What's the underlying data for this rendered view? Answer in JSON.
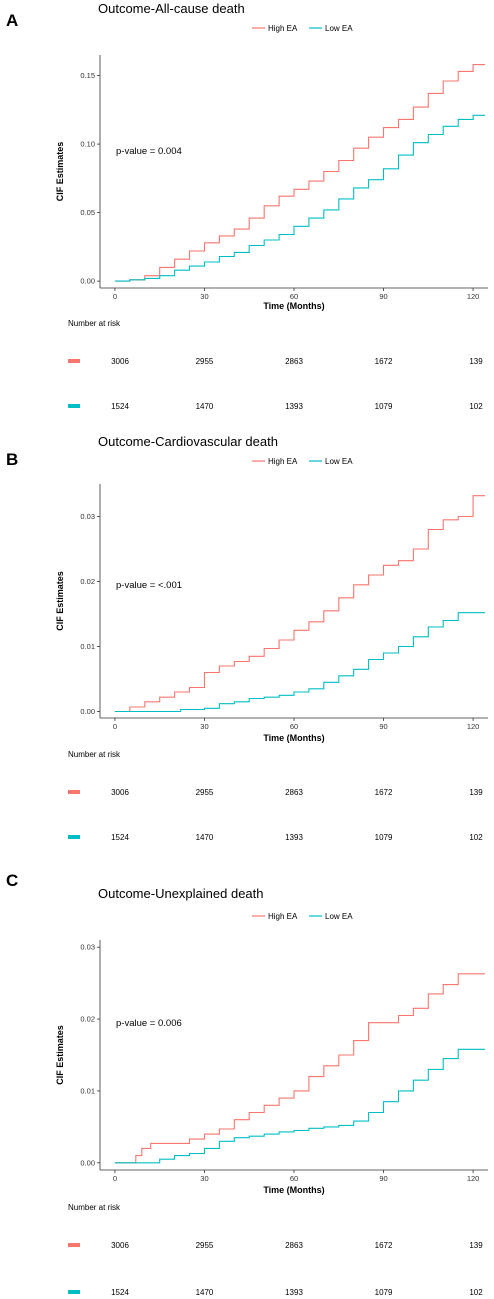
{
  "figure": {
    "colors": {
      "high": "#F8766D",
      "low": "#00BFC4",
      "axis": "#333333"
    },
    "risk_label": "Number at risk"
  },
  "chart_data": [
    {
      "type": "line",
      "panel": "A",
      "title": "Outcome-All-cause death",
      "xlabel": "Time (Months)",
      "ylabel": "CIF Estimates",
      "xlim": [
        -5,
        125
      ],
      "ylim": [
        -0.005,
        0.165
      ],
      "x_ticks": [
        0,
        30,
        60,
        90,
        120
      ],
      "y_ticks": [
        0.0,
        0.05,
        0.1,
        0.15
      ],
      "y_tick_labels": [
        "0.00",
        "0.05",
        "0.10",
        "0.15"
      ],
      "legend": [
        "High EA",
        "Low EA"
      ],
      "legend_position": "top",
      "p_value": "p-value = 0.004",
      "series": [
        {
          "name": "High EA",
          "x": [
            0,
            5,
            10,
            15,
            20,
            25,
            30,
            35,
            40,
            45,
            50,
            55,
            60,
            65,
            70,
            75,
            80,
            85,
            90,
            95,
            100,
            105,
            110,
            115,
            120,
            124
          ],
          "y": [
            0,
            0.001,
            0.004,
            0.01,
            0.016,
            0.022,
            0.028,
            0.033,
            0.038,
            0.046,
            0.055,
            0.062,
            0.067,
            0.073,
            0.08,
            0.088,
            0.097,
            0.105,
            0.112,
            0.118,
            0.127,
            0.137,
            0.146,
            0.153,
            0.158,
            0.158
          ]
        },
        {
          "name": "Low EA",
          "x": [
            0,
            5,
            10,
            15,
            20,
            25,
            30,
            35,
            40,
            45,
            50,
            55,
            60,
            65,
            70,
            75,
            80,
            85,
            90,
            95,
            100,
            105,
            110,
            115,
            120,
            124
          ],
          "y": [
            0,
            0.001,
            0.002,
            0.004,
            0.008,
            0.011,
            0.014,
            0.018,
            0.021,
            0.026,
            0.03,
            0.034,
            0.04,
            0.046,
            0.052,
            0.06,
            0.068,
            0.074,
            0.082,
            0.092,
            0.101,
            0.107,
            0.113,
            0.118,
            0.121,
            0.121
          ]
        }
      ],
      "risk_table": {
        "times": [
          0,
          30,
          60,
          90,
          120
        ],
        "rows": [
          {
            "name": "High EA",
            "values": [
              "3006",
              "2955",
              "2863",
              "1672",
              "139"
            ]
          },
          {
            "name": "Low EA",
            "values": [
              "1524",
              "1470",
              "1393",
              "1079",
              "102"
            ]
          }
        ]
      }
    },
    {
      "type": "line",
      "panel": "B",
      "title": "Outcome-Cardiovascular death",
      "xlabel": "Time (Months)",
      "ylabel": "CIF Estimates",
      "xlim": [
        -5,
        125
      ],
      "ylim": [
        -0.001,
        0.035
      ],
      "x_ticks": [
        0,
        30,
        60,
        90,
        120
      ],
      "y_ticks": [
        0.0,
        0.01,
        0.02,
        0.03
      ],
      "y_tick_labels": [
        "0.00",
        "0.01",
        "0.02",
        "0.03"
      ],
      "legend": [
        "High EA",
        "Low EA"
      ],
      "legend_position": "top",
      "p_value": "p-value = <.001",
      "series": [
        {
          "name": "High EA",
          "x": [
            0,
            5,
            10,
            15,
            20,
            25,
            30,
            35,
            40,
            45,
            50,
            55,
            60,
            65,
            70,
            75,
            80,
            85,
            90,
            95,
            100,
            105,
            110,
            115,
            120,
            124
          ],
          "y": [
            0,
            0.0007,
            0.0015,
            0.0022,
            0.003,
            0.0037,
            0.006,
            0.007,
            0.0077,
            0.0085,
            0.0097,
            0.011,
            0.0125,
            0.0138,
            0.0155,
            0.0175,
            0.0195,
            0.021,
            0.0225,
            0.0232,
            0.025,
            0.028,
            0.0295,
            0.03,
            0.0332,
            0.0332
          ]
        },
        {
          "name": "Low EA",
          "x": [
            0,
            20,
            22,
            30,
            35,
            40,
            45,
            50,
            55,
            60,
            65,
            70,
            75,
            80,
            85,
            90,
            95,
            100,
            105,
            110,
            115,
            124
          ],
          "y": [
            0,
            0,
            0.0003,
            0.0005,
            0.0012,
            0.0015,
            0.002,
            0.0022,
            0.0025,
            0.003,
            0.0035,
            0.0045,
            0.0055,
            0.0065,
            0.008,
            0.009,
            0.01,
            0.0115,
            0.013,
            0.014,
            0.0152,
            0.0152
          ]
        }
      ],
      "risk_table": {
        "times": [
          0,
          30,
          60,
          90,
          120
        ],
        "rows": [
          {
            "name": "High EA",
            "values": [
              "3006",
              "2955",
              "2863",
              "1672",
              "139"
            ]
          },
          {
            "name": "Low EA",
            "values": [
              "1524",
              "1470",
              "1393",
              "1079",
              "102"
            ]
          }
        ]
      }
    },
    {
      "type": "line",
      "panel": "C",
      "title": "Outcome-Unexplained death",
      "xlabel": "Time (Months)",
      "ylabel": "CIF Estimates",
      "xlim": [
        -5,
        125
      ],
      "ylim": [
        -0.001,
        0.031
      ],
      "x_ticks": [
        0,
        30,
        60,
        90,
        120
      ],
      "y_ticks": [
        0.0,
        0.01,
        0.02,
        0.03
      ],
      "y_tick_labels": [
        "0.00",
        "0.01",
        "0.02",
        "0.03"
      ],
      "legend": [
        "High EA",
        "Low EA"
      ],
      "legend_position": "top",
      "p_value": "p-value = 0.006",
      "series": [
        {
          "name": "High EA",
          "x": [
            0,
            5,
            7,
            9,
            12,
            15,
            20,
            25,
            30,
            35,
            40,
            45,
            50,
            55,
            60,
            65,
            70,
            75,
            80,
            85,
            90,
            95,
            100,
            105,
            110,
            115,
            124
          ],
          "y": [
            0,
            0,
            0.001,
            0.002,
            0.0027,
            0.0027,
            0.0027,
            0.0033,
            0.004,
            0.0047,
            0.006,
            0.007,
            0.008,
            0.009,
            0.01,
            0.012,
            0.0135,
            0.015,
            0.017,
            0.0195,
            0.0195,
            0.0205,
            0.0215,
            0.0235,
            0.0248,
            0.0263,
            0.0263
          ]
        },
        {
          "name": "Low EA",
          "x": [
            0,
            10,
            15,
            20,
            25,
            30,
            35,
            40,
            45,
            50,
            55,
            60,
            65,
            70,
            75,
            80,
            85,
            90,
            95,
            100,
            105,
            110,
            115,
            124
          ],
          "y": [
            0,
            0,
            0.0005,
            0.001,
            0.0013,
            0.002,
            0.003,
            0.0035,
            0.0037,
            0.004,
            0.0043,
            0.0045,
            0.0048,
            0.005,
            0.0052,
            0.0058,
            0.007,
            0.0085,
            0.01,
            0.0115,
            0.013,
            0.0145,
            0.0158,
            0.0158
          ]
        }
      ],
      "risk_table": {
        "times": [
          0,
          30,
          60,
          90,
          120
        ],
        "rows": [
          {
            "name": "High EA",
            "values": [
              "3006",
              "2955",
              "2863",
              "1672",
              "139"
            ]
          },
          {
            "name": "Low EA",
            "values": [
              "1524",
              "1470",
              "1393",
              "1079",
              "102"
            ]
          }
        ]
      }
    }
  ]
}
